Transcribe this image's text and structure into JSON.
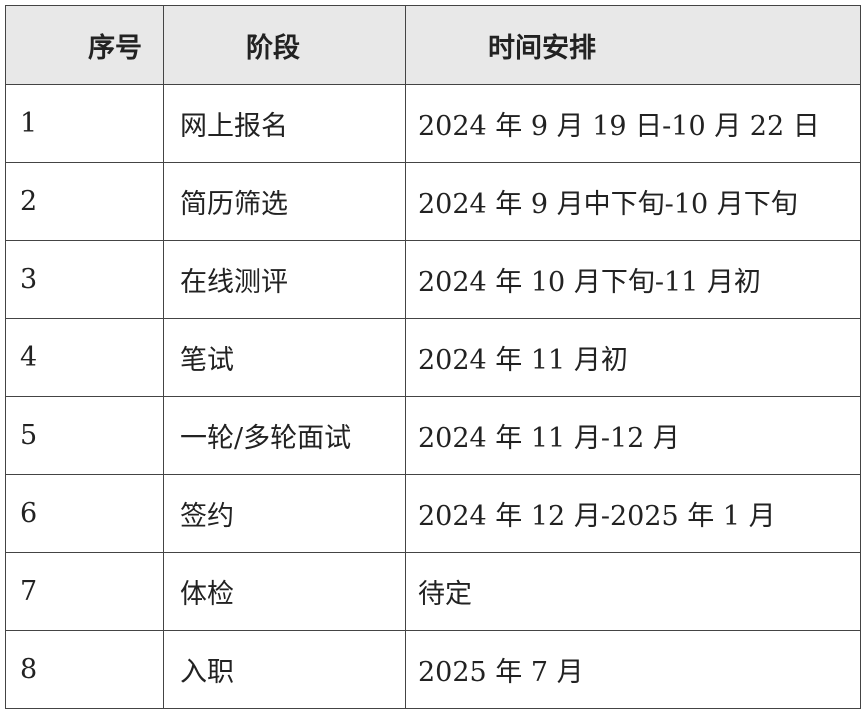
{
  "table": {
    "header": [
      "序号",
      "阶段",
      "时间安排"
    ],
    "rows": [
      [
        "1",
        "网上报名",
        "2024 年 9 月 19 日-10 月 22 日"
      ],
      [
        "2",
        "简历筛选",
        "2024 年 9 月中下旬-10 月下旬"
      ],
      [
        "3",
        "在线测评",
        "2024 年 10 月下旬-11 月初"
      ],
      [
        "4",
        "笔试",
        "2024 年 11 月初"
      ],
      [
        "5",
        "一轮/多轮面试",
        "2024 年 11 月-12 月"
      ],
      [
        "6",
        "签约",
        "2024 年 12 月-2025 年 1 月"
      ],
      [
        "7",
        "体检",
        "待定"
      ],
      [
        "8",
        "入职",
        "2025 年 7 月"
      ]
    ]
  }
}
